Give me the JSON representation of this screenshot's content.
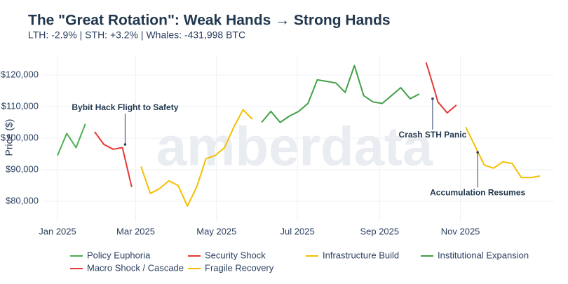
{
  "chart_data": {
    "type": "line",
    "title": "The \"Great Rotation\": Weak Hands → Strong Hands",
    "subtitle": "LTH: -2.9% | STH: +3.2% | Whales: -431,998 BTC",
    "y_label": "Price ($)",
    "watermark": "amberdata",
    "grid": true,
    "legend": "bottom",
    "xlim": [
      "2025-01-01",
      "2025-12-31"
    ],
    "xticks": [
      {
        "value": "2025-01-01",
        "label": "Jan 2025"
      },
      {
        "value": "2025-03-01",
        "label": "Mar 2025"
      },
      {
        "value": "2025-05-01",
        "label": "May 2025"
      },
      {
        "value": "2025-07-01",
        "label": "Jul 2025"
      },
      {
        "value": "2025-09-01",
        "label": "Sep 2025"
      },
      {
        "value": "2025-11-01",
        "label": "Nov 2025"
      }
    ],
    "ylim": [
      74000,
      125000
    ],
    "yticks": [
      {
        "value": 80000,
        "label": "$80,000"
      },
      {
        "value": 90000,
        "label": "$90,000"
      },
      {
        "value": 100000,
        "label": "$100,000"
      },
      {
        "value": 110000,
        "label": "$110,000"
      },
      {
        "value": 120000,
        "label": "$120,000"
      }
    ],
    "series": [
      {
        "name": "Policy Euphoria",
        "color": "#4caf50",
        "x": [
          "2025-01-01",
          "2025-01-08",
          "2025-01-15",
          "2025-01-22"
        ],
        "values": [
          94500,
          101500,
          97000,
          104500
        ]
      },
      {
        "name": "Security Shock",
        "color": "#e53935",
        "x": [
          "2025-10-06",
          "2025-10-08",
          "2025-10-15",
          "2025-10-22",
          "2025-10-29"
        ],
        "values": [
          124000,
          121500,
          111500,
          108000,
          110500
        ]
      },
      {
        "name": "Infrastructure Build",
        "color": "#f5bf00",
        "x": [
          "2025-11-05",
          "2025-11-12",
          "2025-11-19",
          "2025-11-26",
          "2025-12-03",
          "2025-12-10",
          "2025-12-17",
          "2025-12-24",
          "2025-12-31"
        ],
        "values": [
          103500,
          97500,
          91500,
          90500,
          92500,
          92000,
          87500,
          87500,
          88000
        ]
      },
      {
        "name": "Institutional Expansion",
        "color": "#43a047",
        "x": [
          "2025-06-04",
          "2025-06-11",
          "2025-06-18",
          "2025-06-25",
          "2025-07-02",
          "2025-07-09",
          "2025-07-16",
          "2025-07-23",
          "2025-07-30",
          "2025-08-06",
          "2025-08-13",
          "2025-08-20",
          "2025-08-27",
          "2025-09-03",
          "2025-09-10",
          "2025-09-17",
          "2025-09-24",
          "2025-10-01"
        ],
        "values": [
          105000,
          108500,
          105000,
          107000,
          108500,
          111000,
          118500,
          118000,
          117500,
          114500,
          123000,
          113500,
          111500,
          111000,
          113500,
          116000,
          112500,
          114000
        ]
      },
      {
        "name": "Macro Shock / Cascade",
        "color": "#e53935",
        "x": [
          "2025-01-29",
          "2025-02-05",
          "2025-02-12",
          "2025-02-19",
          "2025-02-26"
        ],
        "values": [
          102000,
          98000,
          96500,
          97000,
          84500
        ]
      },
      {
        "name": "Fragile Recovery",
        "color": "#f5bf00",
        "x": [
          "2025-03-05",
          "2025-03-12",
          "2025-03-19",
          "2025-03-26",
          "2025-04-02",
          "2025-04-09",
          "2025-04-16",
          "2025-04-23",
          "2025-04-30",
          "2025-05-07",
          "2025-05-14",
          "2025-05-21",
          "2025-05-28"
        ],
        "values": [
          91000,
          82500,
          84000,
          86500,
          85000,
          78500,
          84500,
          93500,
          94500,
          97000,
          103500,
          109000,
          106000
        ]
      }
    ],
    "annotations": [
      {
        "text": "Bybit Hack Flight to Safety",
        "x": "2025-02-21",
        "y": 98000
      },
      {
        "text": "Crash STH Panic",
        "x": "2025-10-11",
        "y": 112500
      },
      {
        "text": "Accumulation Resumes",
        "x": "2025-11-14",
        "y": 95500
      }
    ]
  }
}
